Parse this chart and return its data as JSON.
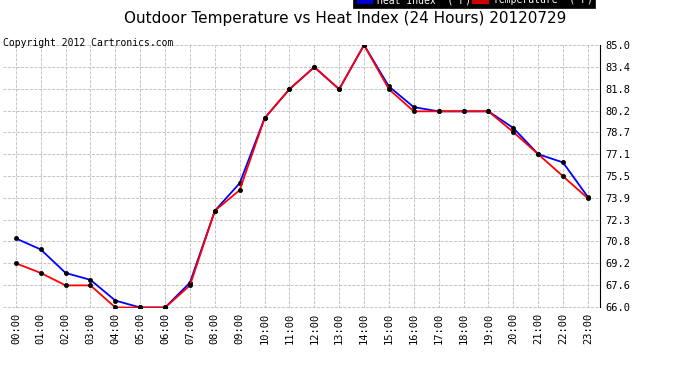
{
  "title": "Outdoor Temperature vs Heat Index (24 Hours) 20120729",
  "copyright": "Copyright 2012 Cartronics.com",
  "ylim": [
    66.0,
    85.0
  ],
  "yticks": [
    66.0,
    67.6,
    69.2,
    70.8,
    72.3,
    73.9,
    75.5,
    77.1,
    78.7,
    80.2,
    81.8,
    83.4,
    85.0
  ],
  "ytick_labels": [
    "66.0",
    "67.6",
    "69.2",
    "70.8",
    "72.3",
    "73.9",
    "75.5",
    "77.1",
    "78.7",
    "80.2",
    "81.8",
    "83.4",
    "85.0"
  ],
  "hours": [
    0,
    1,
    2,
    3,
    4,
    5,
    6,
    7,
    8,
    9,
    10,
    11,
    12,
    13,
    14,
    15,
    16,
    17,
    18,
    19,
    20,
    21,
    22,
    23
  ],
  "temperature": [
    69.2,
    68.5,
    67.6,
    67.6,
    66.0,
    66.0,
    66.0,
    67.6,
    73.0,
    74.5,
    79.7,
    81.8,
    83.4,
    81.8,
    85.0,
    81.8,
    80.2,
    80.2,
    80.2,
    80.2,
    78.7,
    77.1,
    75.5,
    73.9
  ],
  "heat_index": [
    71.0,
    70.2,
    68.5,
    68.0,
    66.5,
    66.0,
    66.0,
    67.8,
    73.0,
    75.0,
    79.7,
    81.8,
    83.4,
    81.8,
    85.0,
    82.0,
    80.5,
    80.2,
    80.2,
    80.2,
    79.0,
    77.1,
    76.5,
    74.0
  ],
  "temp_color": "#ff0000",
  "heat_color": "#0000ff",
  "bg_color": "#ffffff",
  "grid_color": "#bbbbbb",
  "legend_heat_bg": "#0000cc",
  "legend_temp_bg": "#cc0000",
  "legend_text_color": "#ffffff",
  "title_fontsize": 11,
  "copyright_fontsize": 7,
  "tick_fontsize": 7.5,
  "legend_fontsize": 7
}
